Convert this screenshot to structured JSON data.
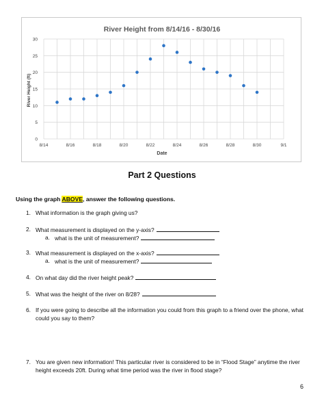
{
  "chart_data": {
    "type": "scatter",
    "title": "River Height from 8/14/16 - 8/30/16",
    "xlabel": "Date",
    "ylabel": "River Height (ft)",
    "x_ticks": [
      "8/14",
      "8/16",
      "8/18",
      "8/20",
      "8/22",
      "8/24",
      "8/26",
      "8/28",
      "8/30",
      "9/1"
    ],
    "y_ticks": [
      "0",
      "5",
      "10",
      "15",
      "20",
      "25",
      "30"
    ],
    "xlim": [
      "8/14",
      "9/1"
    ],
    "ylim": [
      0,
      30
    ],
    "grid": true,
    "series": [
      {
        "points": [
          {
            "x": "8/15",
            "y": 11
          },
          {
            "x": "8/16",
            "y": 12
          },
          {
            "x": "8/17",
            "y": 12
          },
          {
            "x": "8/18",
            "y": 13
          },
          {
            "x": "8/19",
            "y": 14
          },
          {
            "x": "8/20",
            "y": 16
          },
          {
            "x": "8/21",
            "y": 20
          },
          {
            "x": "8/22",
            "y": 24
          },
          {
            "x": "8/23",
            "y": 28
          },
          {
            "x": "8/24",
            "y": 26
          },
          {
            "x": "8/25",
            "y": 23
          },
          {
            "x": "8/26",
            "y": 21
          },
          {
            "x": "8/27",
            "y": 20
          },
          {
            "x": "8/28",
            "y": 19
          },
          {
            "x": "8/29",
            "y": 16
          },
          {
            "x": "8/30",
            "y": 14
          }
        ]
      }
    ],
    "colors": {
      "point": "#2e75c7",
      "grid": "#d9d9d9",
      "title": "#595959",
      "axis_text": "#404040"
    }
  },
  "section_title": "Part 2 Questions",
  "intro": {
    "before": "Using the graph ",
    "highlight": "ABOVE",
    "after": ", answer the following questions."
  },
  "questions": [
    {
      "num": "1.",
      "text": "What information is the graph giving us?"
    },
    {
      "num": "2.",
      "text": "What measurement is displayed on the y-axis?"
    },
    {
      "num": "a.",
      "text": "what is the unit of measurement?"
    },
    {
      "num": "3.",
      "text": "What measurement is displayed on the x-axis?"
    },
    {
      "num": "a.",
      "text": "what is the unit of measurement?"
    },
    {
      "num": "4.",
      "text": "On what day did the river height peak?"
    },
    {
      "num": "5.",
      "text": "What was the height of the river on 8/28?"
    },
    {
      "num": "6.",
      "text": "If you were going to describe all the information you could from this graph to a friend over the phone, what could you say to them?"
    },
    {
      "num": "7.",
      "text": "You are given new information!  This particular river is considered to be in “Flood Stage” anytime the river height exceeds 20ft.  During what time period was the river in flood stage?"
    }
  ],
  "page_number": "6"
}
